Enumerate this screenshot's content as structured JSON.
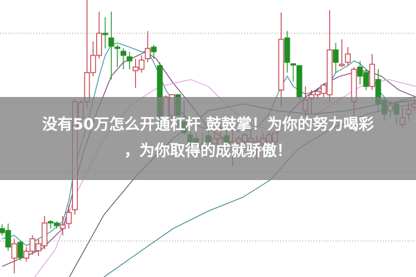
{
  "overlay": {
    "line1": "没有50万怎么开通杠杆 鼓鼓掌！为你的努力喝彩",
    "line2": "，为你取得的成就骄傲！"
  },
  "chart_data": {
    "type": "candlestick",
    "title": "",
    "xlabel": "",
    "ylabel": "",
    "grid": "horizontal-dotted",
    "ylim": [
      0,
      100
    ],
    "xlim": [
      0,
      68
    ],
    "colors": {
      "up": "#c23a44",
      "down": "#1f8f23",
      "ma5": "#2a8f9a",
      "ma10": "#6e3a6e",
      "ma20": "#e59ae0",
      "ma30": "#3c5a40",
      "ma60": "#2f7f86"
    },
    "candles": [
      [
        0,
        17.5,
        19,
        15,
        16
      ],
      [
        1,
        16.8,
        19.3,
        9.5,
        10.8
      ],
      [
        2,
        6.8,
        13.8,
        1.3,
        12
      ],
      [
        3,
        12.5,
        13,
        6,
        7
      ],
      [
        4,
        6.8,
        10.8,
        5.5,
        9.3
      ],
      [
        5,
        9.3,
        15,
        8,
        13.8
      ],
      [
        6,
        9.5,
        13.8,
        7.5,
        12
      ],
      [
        7,
        11.3,
        22,
        10,
        19.5
      ],
      [
        8,
        20,
        20.5,
        17.5,
        19.5
      ],
      [
        9,
        19.5,
        20,
        17.5,
        18.5
      ],
      [
        10,
        17.5,
        22,
        15,
        18.8
      ],
      [
        11,
        19.3,
        25.8,
        17.5,
        23.3
      ],
      [
        12,
        24.3,
        64.3,
        22.5,
        63.3
      ],
      [
        13,
        57.5,
        64,
        56,
        63
      ],
      [
        14,
        63.3,
        100,
        60.8,
        73.8
      ],
      [
        15,
        73.8,
        85,
        72.5,
        80
      ],
      [
        16,
        80,
        95.8,
        78.8,
        88
      ],
      [
        17,
        88,
        93.8,
        82.5,
        87.5
      ],
      [
        18,
        86.3,
        95.8,
        71.3,
        83.3
      ],
      [
        19,
        83,
        83.8,
        75.8,
        82.5
      ],
      [
        20,
        81.5,
        82.5,
        75,
        80
      ],
      [
        21,
        79.5,
        81.3,
        75,
        78
      ],
      [
        22,
        74.5,
        78.8,
        68.3,
        75.8
      ],
      [
        23,
        75,
        80,
        73.8,
        78.3
      ],
      [
        24,
        78.8,
        88.8,
        77.5,
        82.5
      ],
      [
        25,
        83,
        83.8,
        78.8,
        81.3
      ],
      [
        26,
        76.3,
        77.5,
        53.3,
        58
      ],
      [
        27,
        57.5,
        65.5,
        56.3,
        65
      ],
      [
        28,
        58.3,
        66,
        57,
        65.8
      ],
      [
        29,
        65.8,
        66,
        53.8,
        58.3
      ],
      [
        30,
        56,
        63.8,
        51.3,
        52
      ],
      [
        31,
        51.3,
        55,
        47,
        48.8
      ],
      [
        32,
        50,
        52,
        45,
        47
      ],
      [
        33,
        46,
        52,
        44,
        48
      ],
      [
        34,
        51,
        53,
        46,
        48.8
      ],
      [
        35,
        48,
        53,
        45,
        50
      ],
      [
        36,
        47,
        56,
        45,
        50
      ],
      [
        37,
        51,
        55,
        43.8,
        47
      ],
      [
        38,
        47.5,
        53.8,
        40,
        48.8
      ],
      [
        39,
        48.3,
        51,
        44,
        50
      ],
      [
        40,
        48.8,
        52,
        46,
        51.3
      ],
      [
        41,
        48.8,
        53.8,
        45,
        50
      ],
      [
        42,
        47,
        51,
        42.5,
        49
      ],
      [
        43,
        48,
        52,
        46,
        50
      ],
      [
        44,
        48.8,
        54,
        47,
        51.3
      ],
      [
        45,
        48.8,
        52,
        46,
        52
      ],
      [
        46,
        67.5,
        95.5,
        61.3,
        85.8
      ],
      [
        47,
        86.3,
        88.8,
        73.8,
        77.5
      ],
      [
        48,
        77,
        77,
        70.5,
        76.5
      ],
      [
        49,
        76.3,
        76.3,
        63.8,
        65
      ],
      [
        50,
        60,
        68.8,
        57.5,
        63.8
      ],
      [
        51,
        64.5,
        67.5,
        58.8,
        65.8
      ],
      [
        52,
        65.8,
        68,
        64,
        67
      ],
      [
        53,
        66.3,
        70,
        65,
        69.3
      ],
      [
        54,
        65.8,
        96.3,
        63,
        82
      ],
      [
        55,
        82,
        84.5,
        73.8,
        77.5
      ],
      [
        56,
        76.3,
        85.8,
        75.8,
        76.8
      ],
      [
        57,
        77.5,
        83,
        76.3,
        80.5
      ],
      [
        58,
        63.3,
        75.8,
        57.5,
        75
      ],
      [
        59,
        75.8,
        78,
        69.5,
        72.5
      ],
      [
        60,
        73.8,
        75,
        67.5,
        68.8
      ],
      [
        61,
        68.8,
        80.5,
        67.5,
        76.8
      ],
      [
        62,
        71.3,
        75,
        60,
        62.5
      ],
      [
        63,
        63.8,
        64.5,
        56.3,
        58.8
      ],
      [
        64,
        60,
        63.8,
        57.5,
        62
      ],
      [
        65,
        62.5,
        63.5,
        55,
        58.8
      ],
      [
        66,
        55,
        61.3,
        53.8,
        57.5
      ],
      [
        67,
        58.8,
        63,
        56.3,
        60.5
      ],
      [
        68,
        61.3,
        63.8,
        60,
        62.5
      ]
    ],
    "moving_averages": [
      {
        "key": "ma5",
        "points": [
          [
            0,
            13.8
          ],
          [
            2,
            15
          ],
          [
            4,
            11.3
          ],
          [
            6,
            13.8
          ],
          [
            8,
            16.3
          ],
          [
            10,
            20
          ],
          [
            11,
            27.5
          ],
          [
            12,
            40
          ],
          [
            14,
            55
          ],
          [
            16,
            72.5
          ],
          [
            17,
            80
          ],
          [
            18,
            83.8
          ],
          [
            19,
            84.5
          ],
          [
            21,
            83
          ],
          [
            23,
            81.3
          ],
          [
            24,
            81.3
          ],
          [
            25,
            77.5
          ],
          [
            27,
            67.5
          ],
          [
            29,
            61
          ],
          [
            31,
            56
          ],
          [
            33,
            53.8
          ],
          [
            35,
            53.8
          ],
          [
            37,
            53.8
          ],
          [
            39,
            52.5
          ],
          [
            42,
            53.8
          ],
          [
            44,
            58.8
          ],
          [
            46,
            68.8
          ],
          [
            47,
            72.5
          ],
          [
            48,
            68.8
          ],
          [
            50,
            66
          ],
          [
            52,
            67.5
          ],
          [
            54,
            70
          ],
          [
            55,
            73.8
          ],
          [
            57,
            76.3
          ],
          [
            58,
            78
          ],
          [
            59,
            77
          ],
          [
            60,
            75
          ],
          [
            61,
            72.5
          ],
          [
            62,
            67.5
          ],
          [
            64,
            62.5
          ],
          [
            66,
            63.8
          ],
          [
            68,
            65
          ]
        ]
      },
      {
        "key": "ma10",
        "points": [
          [
            0,
            3.8
          ],
          [
            6.5,
            10
          ],
          [
            10,
            17.5
          ],
          [
            11,
            25
          ],
          [
            13.4,
            45
          ],
          [
            15.7,
            60
          ],
          [
            18,
            72.5
          ],
          [
            20,
            77.5
          ],
          [
            23.7,
            81.3
          ],
          [
            25.4,
            78.8
          ],
          [
            28.2,
            70
          ],
          [
            31,
            62.5
          ],
          [
            34,
            53.8
          ],
          [
            37.4,
            48.8
          ],
          [
            40.8,
            46.3
          ],
          [
            44.8,
            50
          ],
          [
            47.7,
            60
          ],
          [
            50,
            65
          ],
          [
            53.4,
            70
          ],
          [
            55.7,
            72.5
          ],
          [
            58,
            73.8
          ],
          [
            60.2,
            74.5
          ],
          [
            62.5,
            72.5
          ],
          [
            65.4,
            67.5
          ],
          [
            68.2,
            65
          ]
        ]
      },
      {
        "key": "ma20",
        "points": [
          [
            5.4,
            0
          ],
          [
            8.8,
            10
          ],
          [
            12.2,
            30
          ],
          [
            16.8,
            50
          ],
          [
            21.4,
            62.5
          ],
          [
            26,
            68.8
          ],
          [
            31.1,
            71.3
          ],
          [
            34,
            68.8
          ],
          [
            37.4,
            61.3
          ],
          [
            40.8,
            55
          ],
          [
            45.4,
            52.5
          ],
          [
            50,
            56.3
          ],
          [
            54.5,
            62.5
          ],
          [
            59.1,
            68.8
          ],
          [
            63.7,
            71.3
          ],
          [
            68.2,
            68.8
          ]
        ]
      },
      {
        "key": "ma30",
        "points": [
          [
            11.1,
            0
          ],
          [
            16.8,
            22.5
          ],
          [
            22.5,
            37.5
          ],
          [
            28.2,
            50
          ],
          [
            34,
            60
          ],
          [
            39.7,
            62.5
          ],
          [
            45.4,
            60
          ],
          [
            51.1,
            58.8
          ],
          [
            56.8,
            60
          ],
          [
            62.5,
            62.5
          ],
          [
            68.2,
            63.8
          ]
        ]
      },
      {
        "key": "ma60",
        "points": [
          [
            16.8,
            0
          ],
          [
            22.5,
            8.8
          ],
          [
            28.2,
            17.5
          ],
          [
            34,
            23.8
          ],
          [
            39.7,
            28.8
          ],
          [
            44.2,
            35
          ],
          [
            48.8,
            46.3
          ],
          [
            54.5,
            53.8
          ],
          [
            60.2,
            58.8
          ],
          [
            64.8,
            61.3
          ],
          [
            68.2,
            62.5
          ]
        ]
      }
    ]
  }
}
